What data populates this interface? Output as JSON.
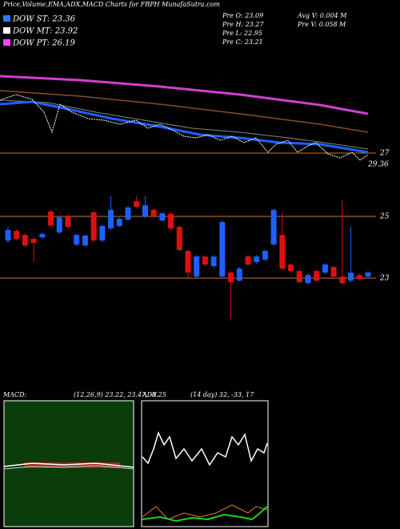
{
  "header": {
    "title": "Price,Volume,EMA,ADX,MACD Charts for FRPH MunafaSutra.com",
    "legend": [
      {
        "name": "DOW ST: 23.36",
        "color": "#2b7bff"
      },
      {
        "name": "DOW MT: 23.92",
        "color": "#ffffff"
      },
      {
        "name": "DOW PT: 26.19",
        "color": "#ff44ff"
      }
    ],
    "stats": [
      "Pre  O: 23.09",
      "Pre  H: 23.27",
      "Pre  L: 22.95",
      "Pre  C: 23.21",
      "Avg V: 0.004  M",
      "Pre  V: 0.058  M"
    ]
  },
  "top_panel": {
    "labels": [
      "27",
      "29.36"
    ]
  },
  "chart_data": {
    "type": "candlestick",
    "up_color": "#1f5fff",
    "down_color": "#e01010",
    "line_color": "#c87533",
    "ylim": [
      21.6,
      26.2
    ],
    "yticks": [
      23,
      25
    ],
    "open": [
      24.22,
      24.53,
      24.4,
      24.27,
      24.32,
      25.16,
      24.48,
      25.0,
      24.09,
      24.06,
      25.13,
      24.22,
      24.61,
      24.69,
      24.9,
      25.49,
      25.0,
      25.21,
      24.87,
      25.08,
      24.66,
      23.88,
      23.05,
      23.7,
      23.39,
      23.05,
      23.18,
      22.92,
      23.7,
      23.52,
      23.6,
      24.09,
      24.4,
      23.44,
      23.23,
      22.84,
      23.23,
      23.18,
      23.36,
      23.05,
      22.92,
      23.1,
      23.05
    ],
    "high": [
      24.66,
      24.58,
      24.45,
      24.32,
      24.48,
      25.21,
      25.0,
      25.05,
      24.43,
      24.4,
      25.18,
      24.74,
      25.65,
      24.97,
      25.34,
      25.65,
      25.65,
      25.26,
      25.15,
      25.13,
      24.71,
      23.93,
      23.75,
      23.75,
      23.75,
      24.87,
      23.23,
      23.36,
      23.75,
      23.75,
      23.93,
      25.26,
      25.1,
      23.49,
      23.28,
      23.15,
      23.28,
      23.49,
      23.41,
      25.52,
      24.66,
      23.15,
      23.23
    ],
    "low": [
      24.14,
      24.22,
      23.99,
      23.52,
      24.27,
      24.66,
      24.43,
      24.61,
      24.04,
      24.01,
      24.17,
      24.17,
      24.56,
      24.64,
      24.85,
      25.26,
      24.95,
      24.95,
      24.82,
      24.56,
      23.86,
      23.0,
      23.0,
      23.39,
      23.34,
      23.0,
      21.68,
      22.87,
      23.39,
      23.47,
      23.55,
      24.04,
      23.26,
      23.18,
      22.82,
      22.79,
      22.87,
      23.13,
      23.0,
      22.79,
      22.87,
      22.92,
      23.0
    ],
    "close": [
      24.56,
      24.27,
      24.06,
      24.14,
      24.43,
      24.71,
      24.97,
      24.66,
      24.4,
      24.38,
      24.22,
      24.69,
      25.21,
      24.92,
      25.29,
      25.31,
      25.36,
      25.0,
      25.1,
      24.61,
      23.91,
      23.18,
      23.7,
      23.44,
      23.7,
      24.82,
      22.87,
      23.31,
      23.44,
      23.7,
      23.88,
      25.21,
      23.31,
      23.23,
      22.87,
      23.1,
      22.92,
      23.44,
      23.05,
      22.84,
      23.18,
      22.97,
      23.18
    ]
  },
  "indicators": {
    "macd": {
      "name": "MACD:",
      "params": "(12,26,9) 23.22, 23.47, -0.25"
    },
    "adx": {
      "name": "ADX",
      "params": "(14  day) 32, -33, 17"
    }
  }
}
